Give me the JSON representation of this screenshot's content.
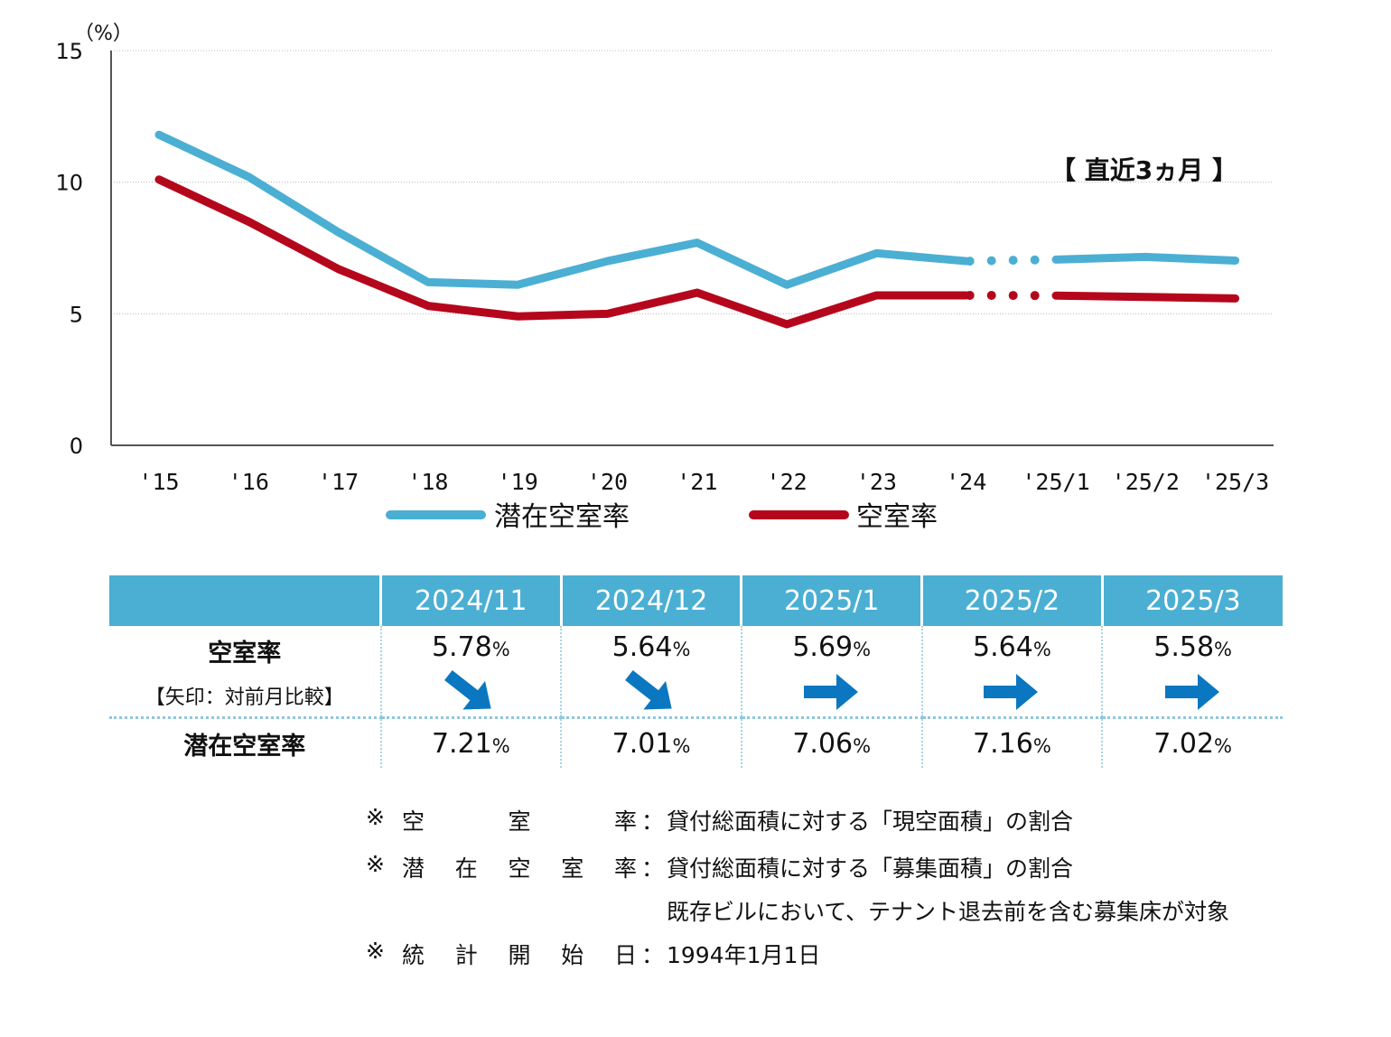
{
  "chart_data": {
    "type": "line",
    "unit_label": "（%）",
    "categories": [
      "'15",
      "'16",
      "'17",
      "'18",
      "'19",
      "'20",
      "'21",
      "'22",
      "'23",
      "'24",
      "'25/1",
      "'25/2",
      "'25/3"
    ],
    "ylim": [
      0,
      15
    ],
    "yticks": [
      "0",
      "5",
      "10",
      "15"
    ],
    "grid": true,
    "annotation": "【 直近3ヵ月 】",
    "series": [
      {
        "name": "潜在空室率",
        "color": "#4bafd3",
        "values": [
          11.8,
          10.2,
          8.1,
          6.2,
          6.1,
          7.0,
          7.7,
          6.1,
          7.3,
          7.0,
          7.06,
          7.16,
          7.02
        ]
      },
      {
        "name": "空室率",
        "color": "#b5071c",
        "values": [
          10.1,
          8.5,
          6.7,
          5.3,
          4.9,
          5.0,
          5.8,
          4.6,
          5.7,
          5.7,
          5.69,
          5.64,
          5.58
        ]
      }
    ]
  },
  "table": {
    "headers": [
      "",
      "2024/11",
      "2024/12",
      "2025/1",
      "2025/2",
      "2025/3"
    ],
    "vacancy_label": "空室率",
    "vacancy_sublabel": "【矢印：対前月比較】",
    "potential_label": "潜在空室率",
    "pct_sign": "%",
    "vacancy": [
      "5.78",
      "5.64",
      "5.69",
      "5.64",
      "5.58"
    ],
    "arrows": [
      "down",
      "down",
      "right",
      "right",
      "right"
    ],
    "potential": [
      "7.21",
      "7.01",
      "7.06",
      "7.16",
      "7.02"
    ],
    "arrow_color": "#0b77c0"
  },
  "notes": [
    {
      "mark": "※",
      "label": [
        "空",
        "室",
        "率"
      ],
      "colon": "：",
      "text": "貸付総面積に対する「現空面積」の割合"
    },
    {
      "mark": "※",
      "label": [
        "潜",
        "在",
        "空",
        "室",
        "率"
      ],
      "colon": "：",
      "text": "貸付総面積に対する「募集面積」の割合"
    },
    {
      "mark": "",
      "label": [],
      "colon": "",
      "text": "既存ビルにおいて、テナント退去前を含む募集床が対象"
    },
    {
      "mark": "※",
      "label": [
        "統",
        "計",
        "開",
        "始",
        "日"
      ],
      "colon": "：",
      "text": "1994年1月1日"
    }
  ]
}
